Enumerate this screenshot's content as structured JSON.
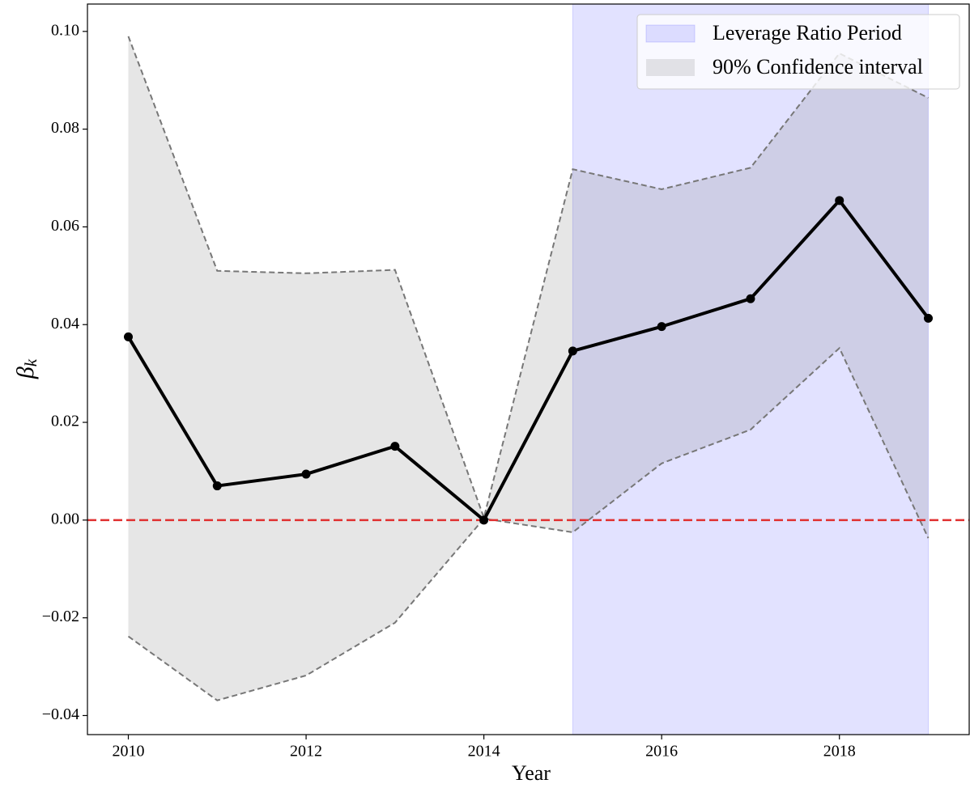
{
  "chart_data": {
    "type": "line",
    "x": [
      2010,
      2011,
      2012,
      2013,
      2014,
      2015,
      2016,
      2017,
      2018,
      2019
    ],
    "values": [
      0.0375,
      0.007,
      0.0094,
      0.0151,
      0,
      0.0346,
      0.0396,
      0.0453,
      0.0654,
      0.0413
    ],
    "color": "#000000",
    "interval": {
      "name": "90% Confidence interval",
      "color": "#808080",
      "upper": [
        0.099,
        0.051,
        0.0505,
        0.0512,
        0.0005,
        0.0718,
        0.0677,
        0.0721,
        0.0955,
        0.0864
      ],
      "lower": [
        -0.0238,
        -0.0369,
        -0.0318,
        -0.021,
        0.0003,
        -0.0025,
        0.0116,
        0.0185,
        0.0352,
        -0.0037
      ]
    },
    "period": {
      "name": "Leverage Ratio Period",
      "range": [
        2015,
        2019
      ],
      "color": "#0000ff"
    },
    "hline": {
      "value": 0,
      "color": "#e03030"
    },
    "xlabel": "Year",
    "ylabel": {
      "symbol": "β",
      "subscript": "k"
    },
    "xlim": [
      2009.54,
      2019.46
    ],
    "ylim": [
      -0.0439,
      0.1056
    ],
    "xticks": [
      2010,
      2012,
      2014,
      2016,
      2018
    ],
    "yticks": [
      {
        "value": -0.04,
        "label": "−0.04"
      },
      {
        "value": -0.02,
        "label": "−0.02"
      },
      {
        "value": 0,
        "label": "0.00"
      },
      {
        "value": 0.02,
        "label": "0.02"
      },
      {
        "value": 0.04,
        "label": "0.04"
      },
      {
        "value": 0.06,
        "label": "0.06"
      },
      {
        "value": 0.08,
        "label": "0.08"
      },
      {
        "value": 0.1,
        "label": "0.10"
      }
    ],
    "legend": "upper right"
  }
}
